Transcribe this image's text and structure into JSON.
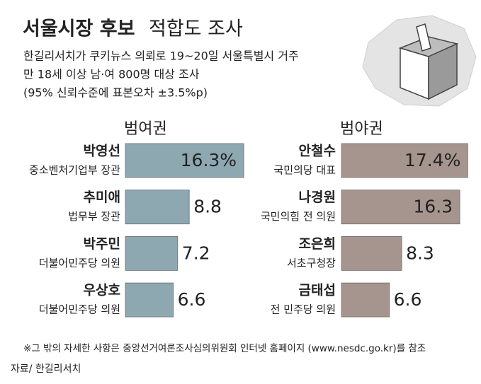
{
  "header": {
    "title_bold": "서울시장 후보",
    "title_rest": "적합도 조사",
    "subtitle": [
      "한길리서치가 쿠키뉴스 의뢰로 19~20일 서울특별시 거주",
      "만 18세 이상 남·여 800명 대상 조사",
      "(95% 신뢰수준에 표본오차 ±3.5%p)"
    ],
    "footnote": "※그 밖의 자세한 사항은 중앙선거여론조사심의위원회 인터넷 홈페이지 (www.nesdc.go.kr)를 참조",
    "source": "자료/ 한길리서치"
  },
  "chart_data": [
    {
      "type": "bar",
      "orientation": "horizontal",
      "title": "범여권",
      "color": "#8ea8b2",
      "title_color": "#6f93a1",
      "categories": [
        "박영선",
        "추미애",
        "박주민",
        "우상호"
      ],
      "descriptions": [
        "중소벤처기업부 장관",
        "법무부 장관",
        "더불어민주당 의원",
        "더불어민주당 의원"
      ],
      "values": [
        16.3,
        8.8,
        7.2,
        6.6
      ],
      "value_labels": [
        "16.3%",
        "8.8",
        "7.2",
        "6.6"
      ]
    },
    {
      "type": "bar",
      "orientation": "horizontal",
      "title": "범야권",
      "color": "#a6958f",
      "title_color": "#a38b85",
      "categories": [
        "안철수",
        "나경원",
        "조은희",
        "금태섭"
      ],
      "descriptions": [
        "국민의당 대표",
        "국민의힘 전 의원",
        "서초구청장",
        "전 민주당 의원"
      ],
      "values": [
        17.4,
        16.3,
        8.3,
        6.6
      ],
      "value_labels": [
        "17.4%",
        "16.3",
        "8.3",
        "6.6"
      ]
    }
  ]
}
